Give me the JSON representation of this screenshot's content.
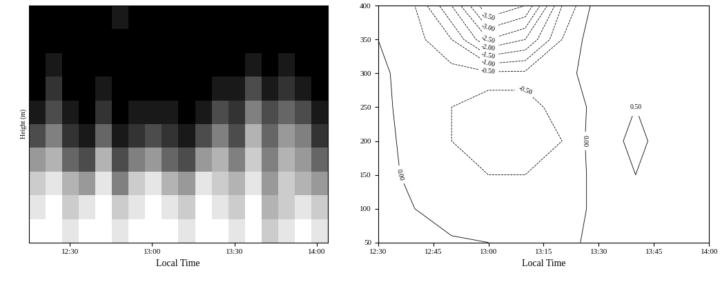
{
  "chart_data": [
    {
      "type": "heatmap",
      "x_label": "Local Time",
      "y_label": "Height (m)",
      "xlim": [
        735,
        844
      ],
      "xticks": [
        {
          "value": 750,
          "label": "12:30"
        },
        {
          "value": 780,
          "label": "13:00"
        },
        {
          "value": 810,
          "label": "13:30"
        },
        {
          "value": 840,
          "label": "14:00"
        }
      ],
      "ylim": [
        50,
        400
      ],
      "yticks": [],
      "tick_labels": "x",
      "cell_range": [
        0,
        1
      ],
      "cells": [
        [
          1,
          1,
          0.9,
          1,
          1,
          0.9,
          1,
          1,
          1,
          0.9,
          1,
          1,
          0.9,
          1,
          0.8,
          0.9,
          1,
          0.9
        ],
        [
          0.9,
          1,
          0.8,
          0.9,
          1,
          0.8,
          0.9,
          1,
          0.9,
          0.8,
          1,
          0.9,
          0.8,
          1,
          0.7,
          0.8,
          0.9,
          0.8
        ],
        [
          0.8,
          0.9,
          0.7,
          0.6,
          0.9,
          0.5,
          0.8,
          0.9,
          0.7,
          0.6,
          0.9,
          0.8,
          0.7,
          0.9,
          0.6,
          0.8,
          0.7,
          0.6
        ],
        [
          0.6,
          0.7,
          0.4,
          0.3,
          0.7,
          0.3,
          0.5,
          0.6,
          0.4,
          0.3,
          0.6,
          0.7,
          0.5,
          0.8,
          0.5,
          0.7,
          0.6,
          0.4
        ],
        [
          0.3,
          0.5,
          0.2,
          0.1,
          0.4,
          0.1,
          0.2,
          0.3,
          0.2,
          0.1,
          0.3,
          0.5,
          0.3,
          0.7,
          0.4,
          0.6,
          0.5,
          0.2
        ],
        [
          0.1,
          0.3,
          0.1,
          0.0,
          0.2,
          0.0,
          0.1,
          0.1,
          0.1,
          0.0,
          0.1,
          0.3,
          0.2,
          0.5,
          0.3,
          0.4,
          0.3,
          0.1
        ],
        [
          0.0,
          0.2,
          0.0,
          0.0,
          0.1,
          0.0,
          0.0,
          0.0,
          0.0,
          0.0,
          0.0,
          0.1,
          0.1,
          0.3,
          0.1,
          0.2,
          0.1,
          0.0
        ],
        [
          0.0,
          0.1,
          0.0,
          0.0,
          0.0,
          0.0,
          0.0,
          0.0,
          0.0,
          0.0,
          0.0,
          0.0,
          0.0,
          0.1,
          0.0,
          0.1,
          0.0,
          0.0
        ],
        [
          0.0,
          0.0,
          0.0,
          0.0,
          0.0,
          0.0,
          0.0,
          0.0,
          0.0,
          0.0,
          0.0,
          0.0,
          0.0,
          0.0,
          0.0,
          0.0,
          0.0,
          0.0
        ],
        [
          0.0,
          0.0,
          0.0,
          0.0,
          0.0,
          0.1,
          0.0,
          0.0,
          0.0,
          0.0,
          0.0,
          0.0,
          0.0,
          0.0,
          0.0,
          0.0,
          0.0,
          0.0
        ]
      ]
    },
    {
      "type": "contour",
      "x_label": "Local Time",
      "color": "#000000",
      "xlim": [
        750,
        840
      ],
      "xticks": [
        {
          "value": 750,
          "label": "12:30"
        },
        {
          "value": 765,
          "label": "12:45"
        },
        {
          "value": 780,
          "label": "13:00"
        },
        {
          "value": 795,
          "label": "13:15"
        },
        {
          "value": 810,
          "label": "13:30"
        },
        {
          "value": 825,
          "label": "13:45"
        },
        {
          "value": 840,
          "label": "14:00"
        }
      ],
      "ylim": [
        50,
        400
      ],
      "yticks": [
        50,
        100,
        150,
        200,
        250,
        300,
        350,
        400
      ],
      "x": [
        750,
        760,
        770,
        780,
        790,
        800,
        810,
        820,
        830,
        840
      ],
      "y": [
        50,
        100,
        150,
        200,
        250,
        300,
        350,
        400
      ],
      "values": [
        [
          0.1,
          0.1,
          0.05,
          0.0,
          -0.1,
          -0.1,
          0.1,
          0.2,
          0.3,
          0.3
        ],
        [
          0.2,
          0.0,
          -0.2,
          -0.3,
          -0.3,
          -0.2,
          0.1,
          0.3,
          0.4,
          0.4
        ],
        [
          0.3,
          -0.2,
          -0.4,
          -0.5,
          -0.5,
          -0.4,
          0.2,
          0.5,
          0.4,
          0.3
        ],
        [
          0.3,
          -0.3,
          -0.5,
          -0.7,
          -0.6,
          -0.5,
          0.3,
          0.6,
          0.3,
          0.2
        ],
        [
          0.2,
          -0.3,
          -0.5,
          -0.6,
          -0.6,
          -0.4,
          0.2,
          0.5,
          0.3,
          0.2
        ],
        [
          0.1,
          -0.2,
          -0.3,
          -0.4,
          -0.4,
          -0.2,
          0.3,
          0.4,
          0.3,
          0.2
        ],
        [
          0.0,
          -0.3,
          -1.0,
          -2.5,
          -2.0,
          -0.5,
          0.4,
          0.5,
          0.4,
          0.3
        ],
        [
          0.0,
          -0.5,
          -2.0,
          -4.0,
          -3.5,
          -1.0,
          0.3,
          0.4,
          0.3,
          0.2
        ]
      ],
      "levels": [
        {
          "value": -3.5,
          "label": "-3.50"
        },
        {
          "value": -3.0,
          "label": "-3.00"
        },
        {
          "value": -2.5,
          "label": "-2.50"
        },
        {
          "value": -2.0,
          "label": "-2.00"
        },
        {
          "value": -1.5,
          "label": "-1.50"
        },
        {
          "value": -1.0,
          "label": "-1.00"
        },
        {
          "value": -0.5,
          "label": "-0.50"
        },
        {
          "value": 0.0,
          "label": "0.00"
        },
        {
          "value": 0.5,
          "label": "0.50"
        }
      ]
    }
  ]
}
